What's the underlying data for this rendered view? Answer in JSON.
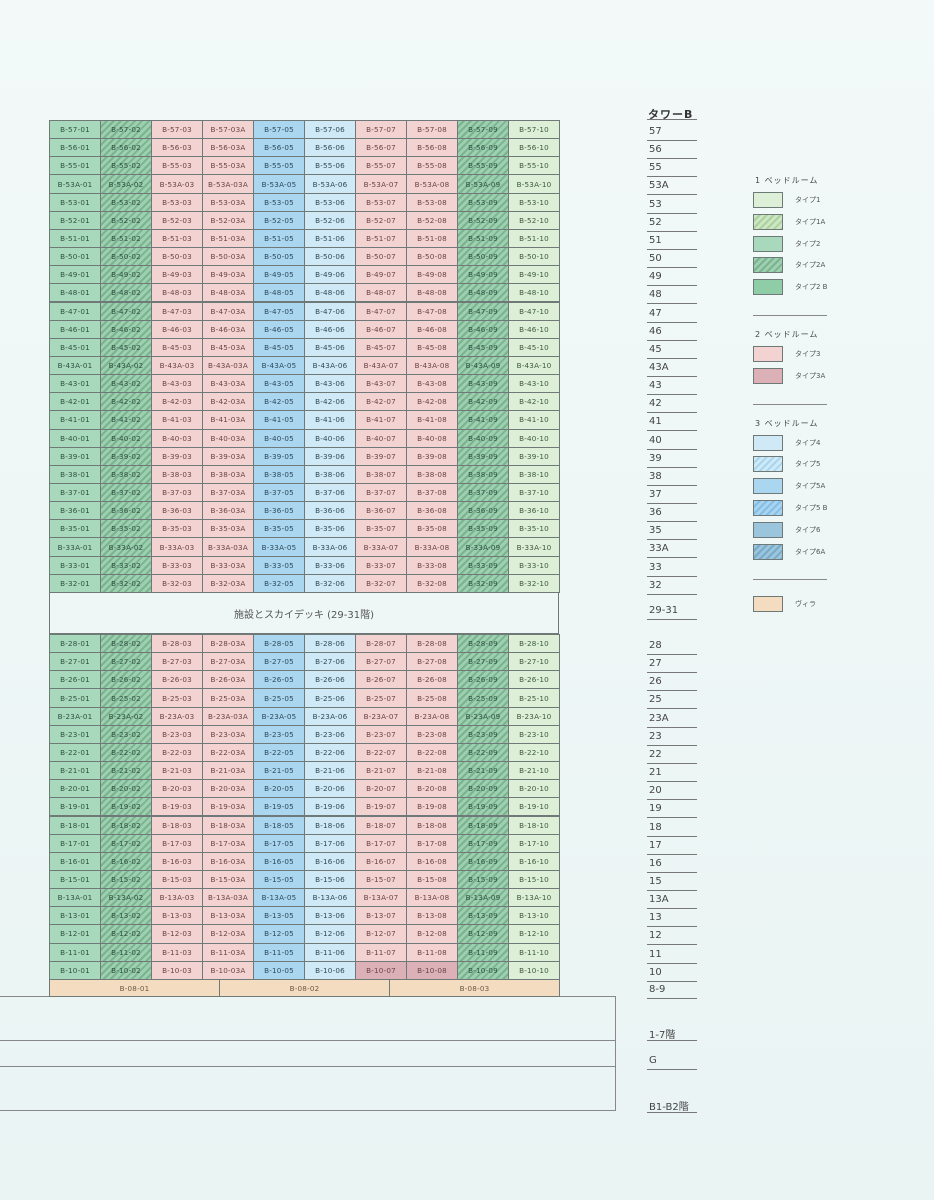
{
  "tower_title": "タワーB",
  "amenity_label": "施設とスカイデッキ (29-31階)",
  "floors_upper": [
    {
      "floor": "57",
      "cells": [
        "B-57-01",
        "B-57-02",
        "B-57-03",
        "B-57-03A",
        "B-57-05",
        "B-57-06",
        "B-57-07",
        "B-57-08",
        "B-57-09",
        "B-57-10"
      ]
    },
    {
      "floor": "56",
      "cells": [
        "B-56-01",
        "B-56-02",
        "B-56-03",
        "B-56-03A",
        "B-56-05",
        "B-56-06",
        "B-56-07",
        "B-56-08",
        "B-56-09",
        "B-56-10"
      ]
    },
    {
      "floor": "55",
      "cells": [
        "B-55-01",
        "B-55-02",
        "B-55-03",
        "B-55-03A",
        "B-55-05",
        "B-55-06",
        "B-55-07",
        "B-55-08",
        "B-55-09",
        "B-55-10"
      ]
    },
    {
      "floor": "53A",
      "cells": [
        "B-53A-01",
        "B-53A-02",
        "B-53A-03",
        "B-53A-03A",
        "B-53A-05",
        "B-53A-06",
        "B-53A-07",
        "B-53A-08",
        "B-53A-09",
        "B-53A-10"
      ]
    },
    {
      "floor": "53",
      "cells": [
        "B-53-01",
        "B-53-02",
        "B-53-03",
        "B-53-03A",
        "B-53-05",
        "B-53-06",
        "B-53-07",
        "B-53-08",
        "B-53-09",
        "B-53-10"
      ]
    },
    {
      "floor": "52",
      "cells": [
        "B-52-01",
        "B-52-02",
        "B-52-03",
        "B-52-03A",
        "B-52-05",
        "B-52-06",
        "B-52-07",
        "B-52-08",
        "B-52-09",
        "B-52-10"
      ]
    },
    {
      "floor": "51",
      "cells": [
        "B-51-01",
        "B-51-02",
        "B-51-03",
        "B-51-03A",
        "B-51-05",
        "B-51-06",
        "B-51-07",
        "B-51-08",
        "B-51-09",
        "B-51-10"
      ]
    },
    {
      "floor": "50",
      "cells": [
        "B-50-01",
        "B-50-02",
        "B-50-03",
        "B-50-03A",
        "B-50-05",
        "B-50-06",
        "B-50-07",
        "B-50-08",
        "B-50-09",
        "B-50-10"
      ]
    },
    {
      "floor": "49",
      "cells": [
        "B-49-01",
        "B-49-02",
        "B-49-03",
        "B-49-03A",
        "B-49-05",
        "B-49-06",
        "B-49-07",
        "B-49-08",
        "B-49-09",
        "B-49-10"
      ]
    },
    {
      "floor": "48",
      "cells": [
        "B-48-01",
        "B-48-02",
        "B-48-03",
        "B-48-03A",
        "B-48-05",
        "B-48-06",
        "B-48-07",
        "B-48-08",
        "B-48-09",
        "B-48-10"
      ]
    },
    {
      "floor": "47",
      "cells": [
        "B-47-01",
        "B-47-02",
        "B-47-03",
        "B-47-03A",
        "B-47-05",
        "B-47-06",
        "B-47-07",
        "B-47-08",
        "B-47-09",
        "B-47-10"
      ]
    },
    {
      "floor": "46",
      "cells": [
        "B-46-01",
        "B-46-02",
        "B-46-03",
        "B-46-03A",
        "B-46-05",
        "B-46-06",
        "B-46-07",
        "B-46-08",
        "B-46-09",
        "B-46-10"
      ]
    },
    {
      "floor": "45",
      "cells": [
        "B-45-01",
        "B-45-02",
        "B-45-03",
        "B-45-03A",
        "B-45-05",
        "B-45-06",
        "B-45-07",
        "B-45-08",
        "B-45-09",
        "B-45-10"
      ]
    },
    {
      "floor": "43A",
      "cells": [
        "B-43A-01",
        "B-43A-02",
        "B-43A-03",
        "B-43A-03A",
        "B-43A-05",
        "B-43A-06",
        "B-43A-07",
        "B-43A-08",
        "B-43A-09",
        "B-43A-10"
      ]
    },
    {
      "floor": "43",
      "cells": [
        "B-43-01",
        "B-43-02",
        "B-43-03",
        "B-43-03A",
        "B-43-05",
        "B-43-06",
        "B-43-07",
        "B-43-08",
        "B-43-09",
        "B-43-10"
      ]
    },
    {
      "floor": "42",
      "cells": [
        "B-42-01",
        "B-42-02",
        "B-42-03",
        "B-42-03A",
        "B-42-05",
        "B-42-06",
        "B-42-07",
        "B-42-08",
        "B-42-09",
        "B-42-10"
      ]
    },
    {
      "floor": "41",
      "cells": [
        "B-41-01",
        "B-41-02",
        "B-41-03",
        "B-41-03A",
        "B-41-05",
        "B-41-06",
        "B-41-07",
        "B-41-08",
        "B-41-09",
        "B-41-10"
      ]
    },
    {
      "floor": "40",
      "cells": [
        "B-40-01",
        "B-40-02",
        "B-40-03",
        "B-40-03A",
        "B-40-05",
        "B-40-06",
        "B-40-07",
        "B-40-08",
        "B-40-09",
        "B-40-10"
      ]
    },
    {
      "floor": "39",
      "cells": [
        "B-39-01",
        "B-39-02",
        "B-39-03",
        "B-39-03A",
        "B-39-05",
        "B-39-06",
        "B-39-07",
        "B-39-08",
        "B-39-09",
        "B-39-10"
      ]
    },
    {
      "floor": "38",
      "cells": [
        "B-38-01",
        "B-38-02",
        "B-38-03",
        "B-38-03A",
        "B-38-05",
        "B-38-06",
        "B-38-07",
        "B-38-08",
        "B-38-09",
        "B-38-10"
      ]
    },
    {
      "floor": "37",
      "cells": [
        "B-37-01",
        "B-37-02",
        "B-37-03",
        "B-37-03A",
        "B-37-05",
        "B-37-06",
        "B-37-07",
        "B-37-08",
        "B-37-09",
        "B-37-10"
      ]
    },
    {
      "floor": "36",
      "cells": [
        "B-36-01",
        "B-36-02",
        "B-36-03",
        "B-36-03A",
        "B-36-05",
        "B-36-06",
        "B-36-07",
        "B-36-08",
        "B-36-09",
        "B-36-10"
      ]
    },
    {
      "floor": "35",
      "cells": [
        "B-35-01",
        "B-35-02",
        "B-35-03",
        "B-35-03A",
        "B-35-05",
        "B-35-06",
        "B-35-07",
        "B-35-08",
        "B-35-09",
        "B-35-10"
      ]
    },
    {
      "floor": "33A",
      "cells": [
        "B-33A-01",
        "B-33A-02",
        "B-33A-03",
        "B-33A-03A",
        "B-33A-05",
        "B-33A-06",
        "B-33A-07",
        "B-33A-08",
        "B-33A-09",
        "B-33A-10"
      ]
    },
    {
      "floor": "33",
      "cells": [
        "B-33-01",
        "B-33-02",
        "B-33-03",
        "B-33-03A",
        "B-33-05",
        "B-33-06",
        "B-33-07",
        "B-33-08",
        "B-33-09",
        "B-33-10"
      ]
    },
    {
      "floor": "32",
      "cells": [
        "B-32-01",
        "B-32-02",
        "B-32-03",
        "B-32-03A",
        "B-32-05",
        "B-32-06",
        "B-32-07",
        "B-32-08",
        "B-32-09",
        "B-32-10"
      ]
    }
  ],
  "floors_lower": [
    {
      "floor": "28",
      "cells": [
        "B-28-01",
        "B-28-02",
        "B-28-03",
        "B-28-03A",
        "B-28-05",
        "B-28-06",
        "B-28-07",
        "B-28-08",
        "B-28-09",
        "B-28-10"
      ]
    },
    {
      "floor": "27",
      "cells": [
        "B-27-01",
        "B-27-02",
        "B-27-03",
        "B-27-03A",
        "B-27-05",
        "B-27-06",
        "B-27-07",
        "B-27-08",
        "B-27-09",
        "B-27-10"
      ]
    },
    {
      "floor": "26",
      "cells": [
        "B-26-01",
        "B-26-02",
        "B-26-03",
        "B-26-03A",
        "B-26-05",
        "B-26-06",
        "B-26-07",
        "B-26-08",
        "B-26-09",
        "B-26-10"
      ]
    },
    {
      "floor": "25",
      "cells": [
        "B-25-01",
        "B-25-02",
        "B-25-03",
        "B-25-03A",
        "B-25-05",
        "B-25-06",
        "B-25-07",
        "B-25-08",
        "B-25-09",
        "B-25-10"
      ]
    },
    {
      "floor": "23A",
      "cells": [
        "B-23A-01",
        "B-23A-02",
        "B-23A-03",
        "B-23A-03A",
        "B-23A-05",
        "B-23A-06",
        "B-23A-07",
        "B-23A-08",
        "B-23A-09",
        "B-23A-10"
      ]
    },
    {
      "floor": "23",
      "cells": [
        "B-23-01",
        "B-23-02",
        "B-23-03",
        "B-23-03A",
        "B-23-05",
        "B-23-06",
        "B-23-07",
        "B-23-08",
        "B-23-09",
        "B-23-10"
      ]
    },
    {
      "floor": "22",
      "cells": [
        "B-22-01",
        "B-22-02",
        "B-22-03",
        "B-22-03A",
        "B-22-05",
        "B-22-06",
        "B-22-07",
        "B-22-08",
        "B-22-09",
        "B-22-10"
      ]
    },
    {
      "floor": "21",
      "cells": [
        "B-21-01",
        "B-21-02",
        "B-21-03",
        "B-21-03A",
        "B-21-05",
        "B-21-06",
        "B-21-07",
        "B-21-08",
        "B-21-09",
        "B-21-10"
      ]
    },
    {
      "floor": "20",
      "cells": [
        "B-20-01",
        "B-20-02",
        "B-20-03",
        "B-20-03A",
        "B-20-05",
        "B-20-06",
        "B-20-07",
        "B-20-08",
        "B-20-09",
        "B-20-10"
      ]
    },
    {
      "floor": "19",
      "cells": [
        "B-19-01",
        "B-19-02",
        "B-19-03",
        "B-19-03A",
        "B-19-05",
        "B-19-06",
        "B-19-07",
        "B-19-08",
        "B-19-09",
        "B-19-10"
      ]
    },
    {
      "floor": "18",
      "cells": [
        "B-18-01",
        "B-18-02",
        "B-18-03",
        "B-18-03A",
        "B-18-05",
        "B-18-06",
        "B-18-07",
        "B-18-08",
        "B-18-09",
        "B-18-10"
      ]
    },
    {
      "floor": "17",
      "cells": [
        "B-17-01",
        "B-17-02",
        "B-17-03",
        "B-17-03A",
        "B-17-05",
        "B-17-06",
        "B-17-07",
        "B-17-08",
        "B-17-09",
        "B-17-10"
      ]
    },
    {
      "floor": "16",
      "cells": [
        "B-16-01",
        "B-16-02",
        "B-16-03",
        "B-16-03A",
        "B-16-05",
        "B-16-06",
        "B-16-07",
        "B-16-08",
        "B-16-09",
        "B-16-10"
      ]
    },
    {
      "floor": "15",
      "cells": [
        "B-15-01",
        "B-15-02",
        "B-15-03",
        "B-15-03A",
        "B-15-05",
        "B-15-06",
        "B-15-07",
        "B-15-08",
        "B-15-09",
        "B-15-10"
      ]
    },
    {
      "floor": "13A",
      "cells": [
        "B-13A-01",
        "B-13A-02",
        "B-13A-03",
        "B-13A-03A",
        "B-13A-05",
        "B-13A-06",
        "B-13A-07",
        "B-13A-08",
        "B-13A-09",
        "B-13A-10"
      ]
    },
    {
      "floor": "13",
      "cells": [
        "B-13-01",
        "B-13-02",
        "B-13-03",
        "B-13-03A",
        "B-13-05",
        "B-13-06",
        "B-13-07",
        "B-13-08",
        "B-13-09",
        "B-13-10"
      ]
    },
    {
      "floor": "12",
      "cells": [
        "B-12-01",
        "B-12-02",
        "B-12-03",
        "B-12-03A",
        "B-12-05",
        "B-12-06",
        "B-12-07",
        "B-12-08",
        "B-12-09",
        "B-12-10"
      ]
    },
    {
      "floor": "11",
      "cells": [
        "B-11-01",
        "B-11-02",
        "B-11-03",
        "B-11-03A",
        "B-11-05",
        "B-11-06",
        "B-11-07",
        "B-11-08",
        "B-11-09",
        "B-11-10"
      ]
    },
    {
      "floor": "10",
      "cells": [
        "B-10-01",
        "B-10-02",
        "B-10-03",
        "B-10-03A",
        "B-10-05",
        "B-10-06",
        "B-10-07",
        "B-10-08",
        "B-10-09",
        "B-10-10"
      ]
    }
  ],
  "column_types": [
    "t2",
    "t2a",
    "t3",
    "t3",
    "t5a",
    "t4",
    "t3",
    "t3",
    "t2a",
    "t1"
  ],
  "overrides": {
    "B-10-07": "t3a",
    "B-10-08": "t3a"
  },
  "villas": [
    "B-08-01",
    "B-08-02",
    "B-08-03"
  ],
  "villa_type": "villa",
  "floor_labels": [
    "57",
    "56",
    "55",
    "53A",
    "53",
    "52",
    "51",
    "50",
    "49",
    "48",
    "47",
    "46",
    "45",
    "43A",
    "43",
    "42",
    "41",
    "40",
    "39",
    "38",
    "37",
    "36",
    "35",
    "33A",
    "33",
    "32",
    "29-31",
    "28",
    "27",
    "26",
    "25",
    "23A",
    "23",
    "22",
    "21",
    "20",
    "19",
    "18",
    "17",
    "16",
    "15",
    "13A",
    "13",
    "12",
    "11",
    "10",
    "8-9",
    "1-7階",
    "G",
    "B1-B2階"
  ],
  "legend": [
    {
      "heading": "1 ベッドルーム",
      "items": [
        {
          "label": "タイプ1",
          "type": "t1"
        },
        {
          "label": "タイプ1A",
          "type": "t1a"
        },
        {
          "label": "タイプ2",
          "type": "t2"
        },
        {
          "label": "タイプ2A",
          "type": "t2a"
        },
        {
          "label": "タイプ2 B",
          "type": "t2b"
        }
      ]
    },
    {
      "heading": "2 ベッドルーム",
      "items": [
        {
          "label": "タイプ3",
          "type": "t3"
        },
        {
          "label": "タイプ3A",
          "type": "t3a"
        }
      ]
    },
    {
      "heading": "3 ベッドルーム",
      "items": [
        {
          "label": "タイプ4",
          "type": "t4"
        },
        {
          "label": "タイプ5",
          "type": "t5"
        },
        {
          "label": "タイプ5A",
          "type": "t5a"
        },
        {
          "label": "タイプ5 B",
          "type": "t5b"
        },
        {
          "label": "タイプ6",
          "type": "t6"
        },
        {
          "label": "タイプ6A",
          "type": "t6a"
        }
      ]
    },
    {
      "heading": "",
      "items": [
        {
          "label": "ヴィラ",
          "type": "villa"
        }
      ]
    }
  ]
}
